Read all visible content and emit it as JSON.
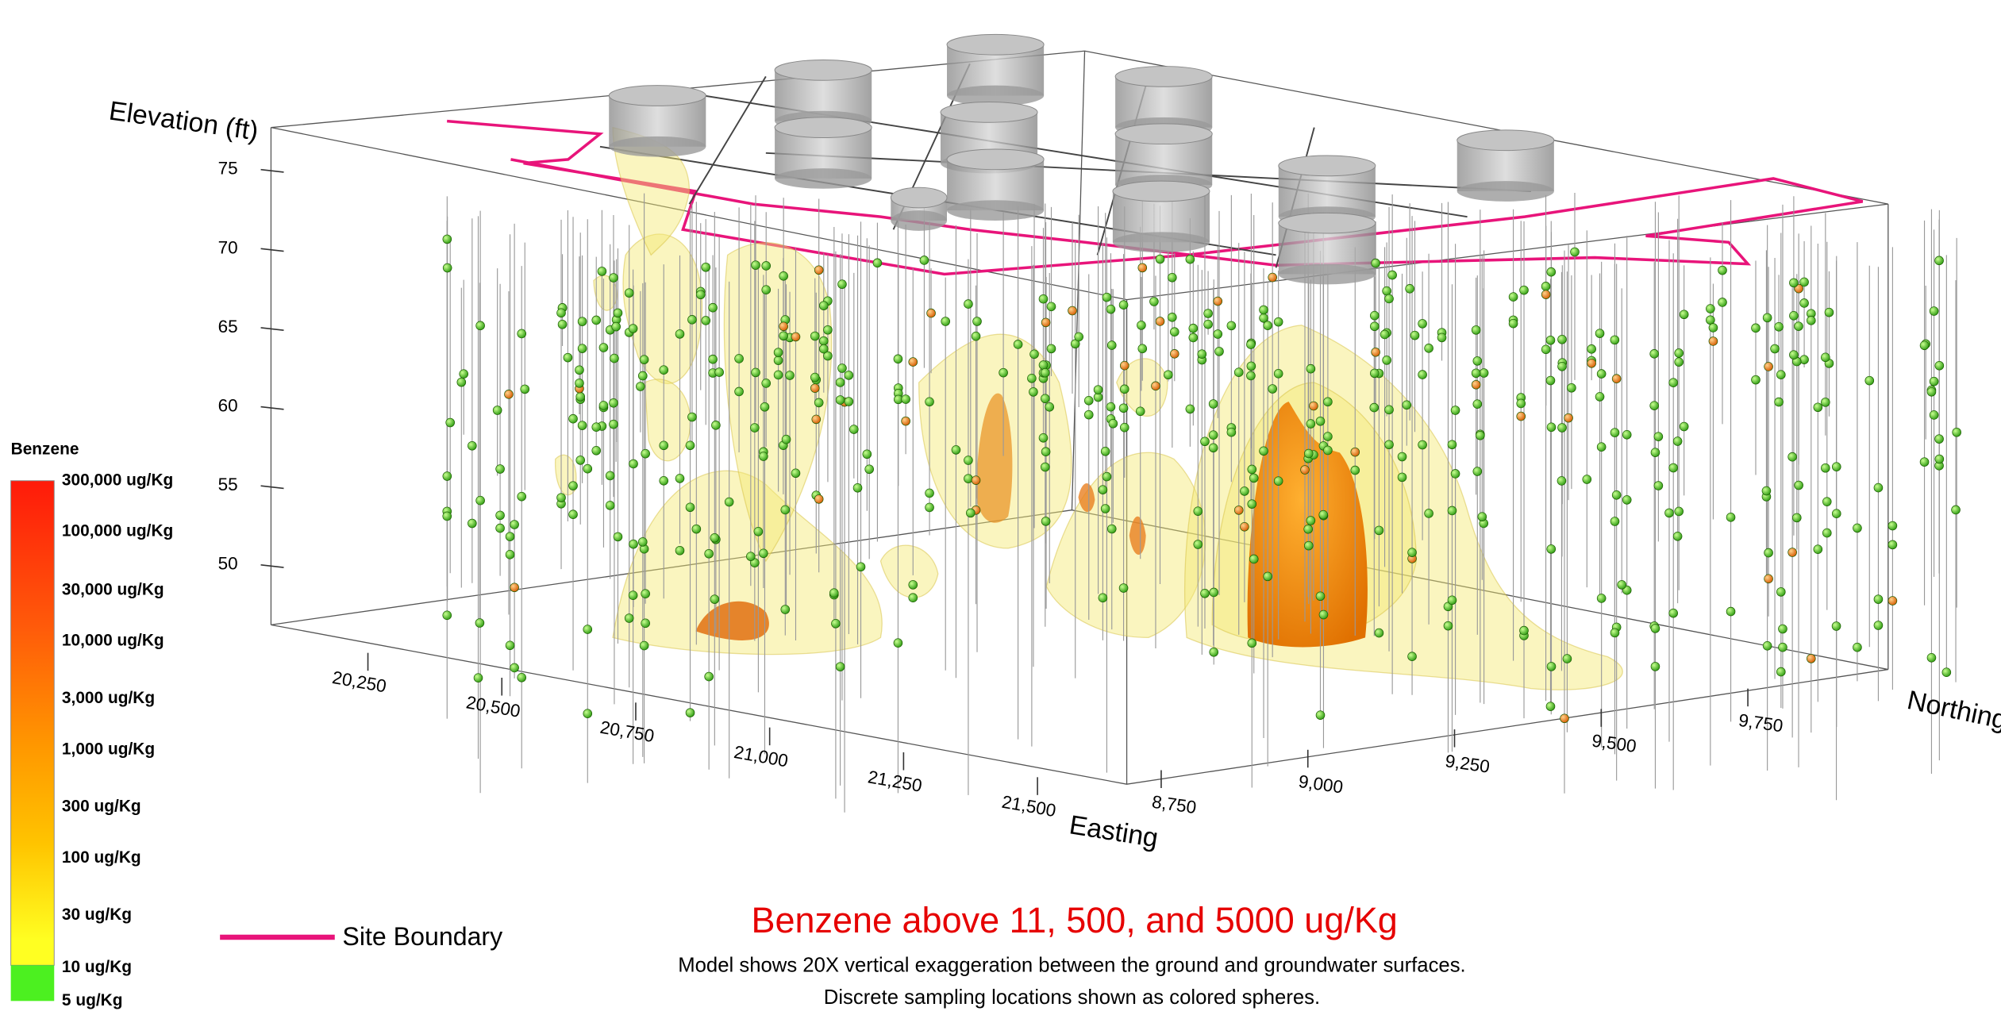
{
  "axes": {
    "elevation": {
      "title": "Elevation (ft)",
      "ticks": [
        "75",
        "70",
        "65",
        "60",
        "55",
        "50"
      ]
    },
    "easting": {
      "title": "Easting",
      "ticks": [
        "20,250",
        "20,500",
        "20,750",
        "21,000",
        "21,250",
        "21,500"
      ]
    },
    "northing": {
      "title": "Northing",
      "ticks": [
        "8,750",
        "9,000",
        "9,250",
        "9,500",
        "9,750"
      ]
    }
  },
  "legend": {
    "title": "Benzene",
    "levels": [
      "300,000 ug/Kg",
      "100,000 ug/Kg",
      "30,000 ug/Kg",
      "10,000 ug/Kg",
      "3,000 ug/Kg",
      "1,000 ug/Kg",
      "300 ug/Kg",
      "100 ug/Kg",
      "30 ug/Kg",
      "10 ug/Kg",
      "5 ug/Kg"
    ],
    "site_boundary": "Site Boundary"
  },
  "caption": {
    "title": "Benzene above 11, 500, and 5000 ug/Kg",
    "lines": [
      "Model shows 20X vertical exaggeration between the ground and groundwater surfaces.",
      "Discrete sampling locations shown as colored spheres."
    ]
  }
}
